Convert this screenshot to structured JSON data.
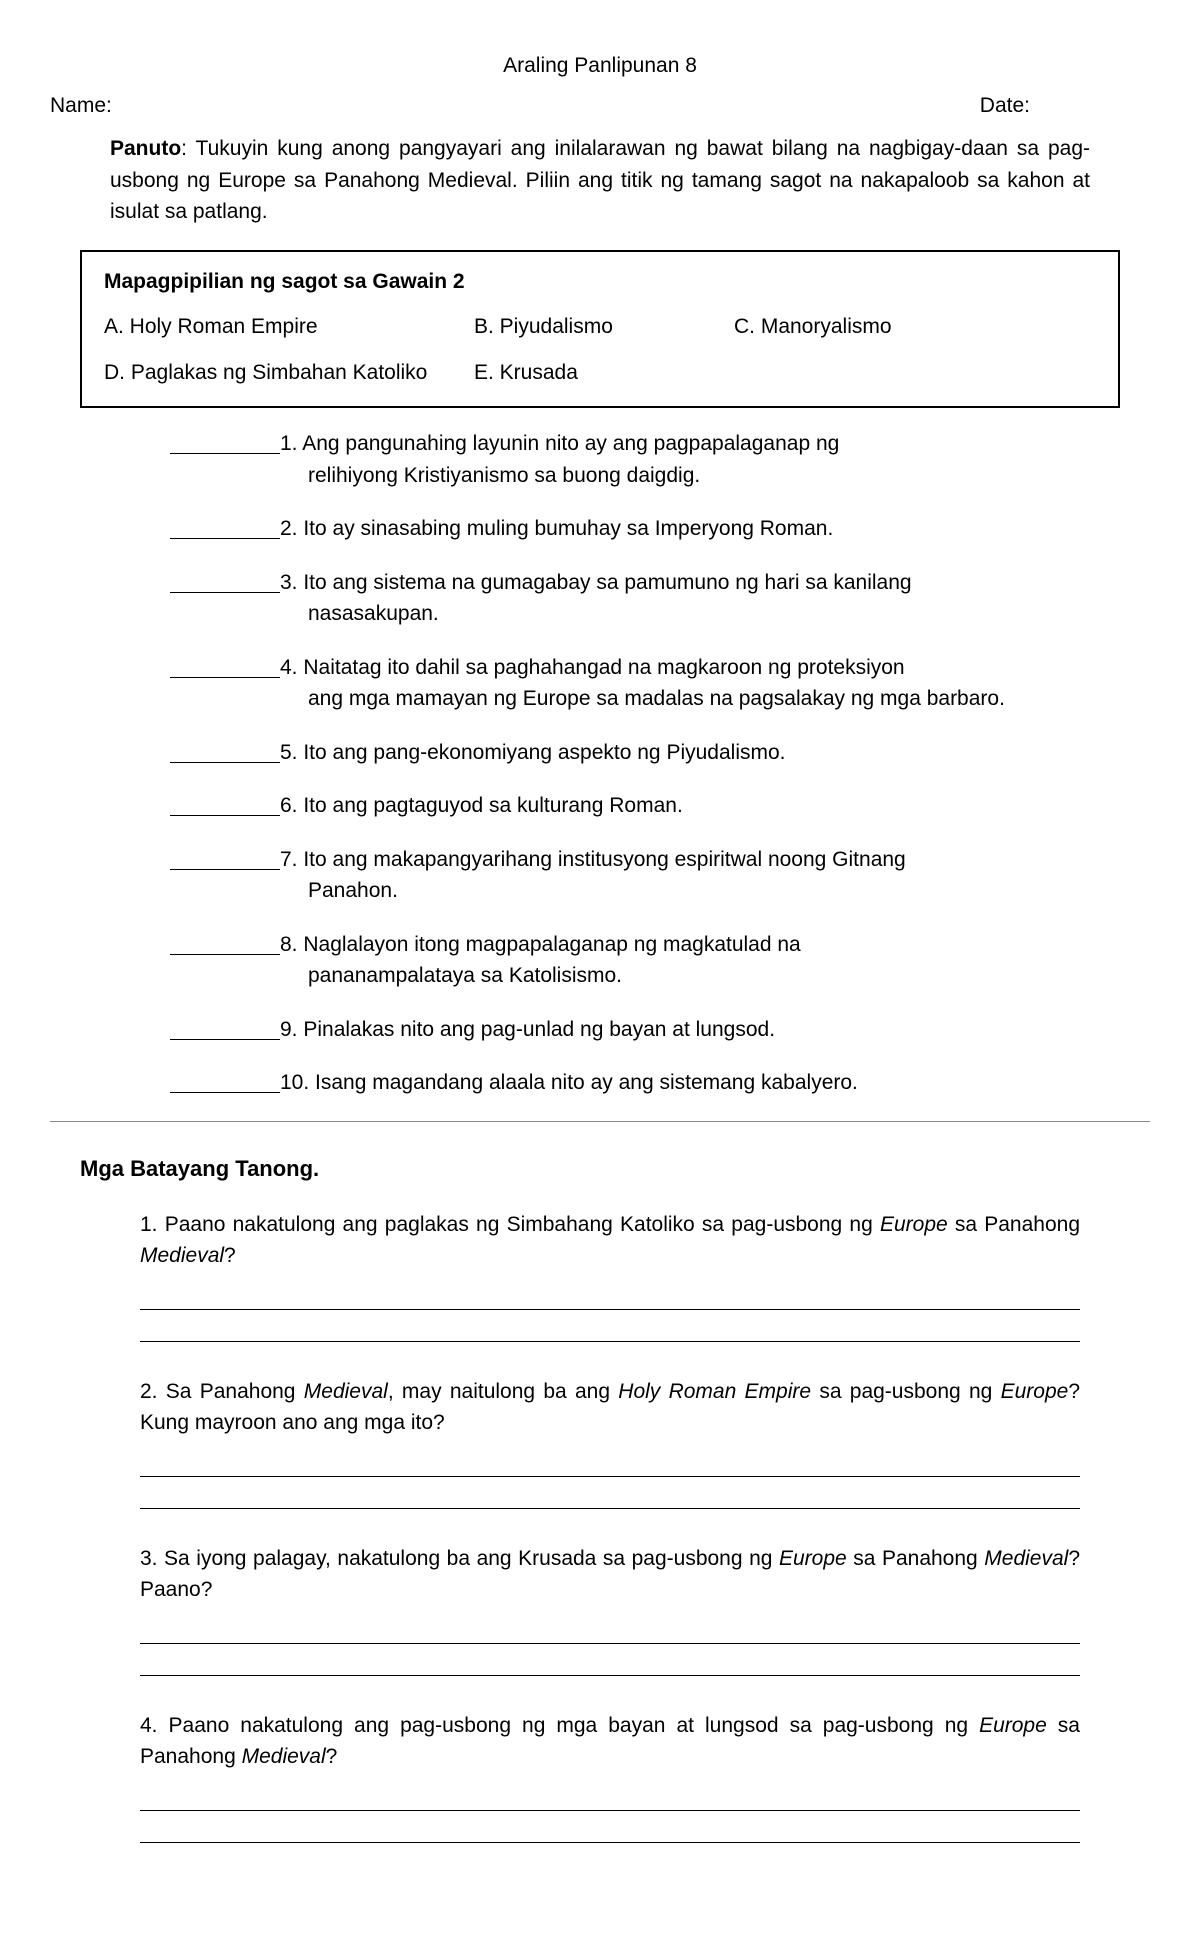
{
  "header": {
    "title": "Araling Panlipunan 8",
    "name_label": "Name:",
    "date_label": "Date:"
  },
  "panuto": {
    "label": "Panuto",
    "text": ": Tukuyin kung anong pangyayari ang inilalarawan ng bawat bilang na nagbigay-daan sa pag-usbong ng Europe sa Panahong Medieval. Piliin ang titik ng tamang sagot na nakapaloob sa kahon at isulat sa patlang."
  },
  "choices": {
    "title": "Mapagpipilian ng sagot sa Gawain 2",
    "a": "A. Holy Roman Empire",
    "b": "B. Piyudalismo",
    "c": "C. Manoryalismo",
    "d": "D. Paglakas ng Simbahan Katoliko",
    "e": "E. Krusada"
  },
  "items": [
    {
      "n": "1.",
      "line1": "Ang pangunahing layunin nito ay ang pagpapalaganap ng",
      "line2": "relihiyong Kristiyanismo sa buong daigdig."
    },
    {
      "n": "2.",
      "line1": "Ito ay sinasabing muling bumuhay sa Imperyong Roman.",
      "line2": ""
    },
    {
      "n": "3.",
      "line1": "Ito ang sistema na gumagabay sa pamumuno ng hari sa kanilang",
      "line2": "nasasakupan."
    },
    {
      "n": "4.",
      "line1": "Naitatag ito dahil sa paghahangad na magkaroon ng proteksiyon",
      "line2": "ang mga mamayan ng Europe sa madalas na pagsalakay ng mga barbaro."
    },
    {
      "n": "5.",
      "line1": "Ito ang pang-ekonomiyang aspekto ng Piyudalismo.",
      "line2": ""
    },
    {
      "n": "6.",
      "line1": "Ito ang pagtaguyod sa kulturang Roman.",
      "line2": ""
    },
    {
      "n": "7.",
      "line1": "Ito ang makapangyarihang institusyong espiritwal noong Gitnang",
      "line2": "Panahon."
    },
    {
      "n": "8.",
      "line1": "Naglalayon itong magpapalaganap ng magkatulad na",
      "line2": "pananampalataya sa Katolisismo."
    },
    {
      "n": "9.",
      "line1": "Pinalakas nito ang pag-unlad ng bayan at lungsod.",
      "line2": ""
    },
    {
      "n": "10.",
      "line1": "Isang magandang alaala nito ay ang sistemang kabalyero.",
      "line2": ""
    }
  ],
  "essay": {
    "title": "Mga Batayang Tanong.",
    "questions": [
      "1. Paano nakatulong ang paglakas ng Simbahang Katoliko sa pag-usbong ng <em>Europe</em> sa Panahong <em>Medieval</em>?",
      "2. Sa Panahong <em>Medieval</em>, may naitulong ba ang <em>Holy Roman Empire</em> sa pag-usbong ng <em>Europe</em>? Kung mayroon ano ang mga ito?",
      "3. Sa iyong palagay, nakatulong ba ang Krusada sa pag-usbong ng <em>Europe</em> sa Panahong <em>Medieval</em>? Paano?",
      "4. Paano nakatulong ang pag-usbong ng mga bayan at lungsod sa pag-usbong ng <em>Europe</em> sa Panahong <em>Medieval</em>?"
    ]
  }
}
